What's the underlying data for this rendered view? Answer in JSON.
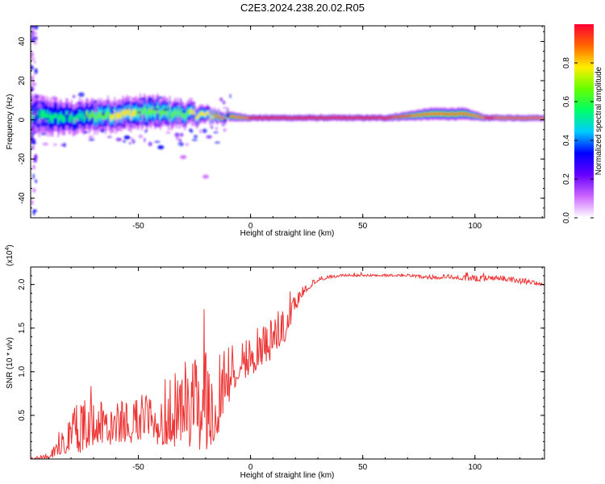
{
  "title": "C2E3.2024.238.20.02.R05",
  "chart_data": [
    {
      "type": "heatmap",
      "xlabel": "Height of straight line (km)",
      "ylabel": "Frequency (Hz)",
      "xlim": [
        -98,
        131
      ],
      "ylim": [
        -50,
        48
      ],
      "xticks": [
        -50,
        0,
        50,
        100
      ],
      "yticks": [
        -40,
        -20,
        0,
        20,
        40
      ],
      "grid": false,
      "colorbar": {
        "label": "Normalized spectral amplitude",
        "range": [
          0.0,
          1.0
        ],
        "ticks": [
          "0.0",
          "0.2",
          "0.4",
          "0.6",
          "0.8"
        ],
        "colors": [
          "#ffffff",
          "#cc66ff",
          "#6600ff",
          "#0000ff",
          "#00ccff",
          "#00ff66",
          "#66ff00",
          "#ffee00",
          "#ff6600",
          "#ff0033"
        ]
      },
      "ridge": [
        {
          "x": -95,
          "f_center": 2,
          "f_spread": 6,
          "peak": 0.6
        },
        {
          "x": -80,
          "f_center": 1,
          "f_spread": 5,
          "peak": 0.55
        },
        {
          "x": -60,
          "f_center": 3,
          "f_spread": 5,
          "peak": 0.75
        },
        {
          "x": -45,
          "f_center": 4,
          "f_spread": 5,
          "peak": 0.7
        },
        {
          "x": -30,
          "f_center": 3,
          "f_spread": 4,
          "peak": 0.7
        },
        {
          "x": -15,
          "f_center": 2,
          "f_spread": 2,
          "peak": 0.85
        },
        {
          "x": 0,
          "f_center": 1,
          "f_spread": 1,
          "peak": 0.95
        },
        {
          "x": 25,
          "f_center": 1,
          "f_spread": 1,
          "peak": 1.0
        },
        {
          "x": 60,
          "f_center": 1,
          "f_spread": 1,
          "peak": 1.0
        },
        {
          "x": 80,
          "f_center": 3,
          "f_spread": 2,
          "peak": 0.9
        },
        {
          "x": 95,
          "f_center": 3,
          "f_spread": 2,
          "peak": 0.9
        },
        {
          "x": 105,
          "f_center": 1,
          "f_spread": 1,
          "peak": 0.95
        },
        {
          "x": 131,
          "f_center": 1,
          "f_spread": 1,
          "peak": 0.9
        }
      ],
      "chirp_branch": [
        {
          "x": -55,
          "f": -9
        },
        {
          "x": -40,
          "f": -14
        },
        {
          "x": -30,
          "f": -19
        },
        {
          "x": -20,
          "f": -29
        }
      ]
    },
    {
      "type": "line",
      "xlabel": "Height of straight line (km)",
      "ylabel": "SNR (10 * v/v)",
      "y_multiplier": "(x10^4)",
      "y_multiplier_base": "(x10",
      "y_multiplier_exp": "4",
      "y_multiplier_close": ")",
      "xlim": [
        -98,
        131
      ],
      "ylim": [
        0.0,
        2.2
      ],
      "xticks": [
        -50,
        0,
        50,
        100
      ],
      "yticks": [
        "0.5",
        "1.0",
        "1.5",
        "2.0"
      ],
      "series": [
        {
          "name": "SNR",
          "color": "#ee3333",
          "envelope": {
            "x": [
              -98,
              -90,
              -85,
              -80,
              -75,
              -70,
              -60,
              -50,
              -40,
              -30,
              -25,
              -20,
              -15,
              -10,
              -5,
              0,
              5,
              10,
              15,
              20,
              25,
              30,
              40,
              50,
              60,
              70,
              80,
              90,
              100,
              110,
              120,
              131
            ],
            "base": [
              0.0,
              0.02,
              0.1,
              0.2,
              0.25,
              0.3,
              0.3,
              0.32,
              0.35,
              0.4,
              0.45,
              0.4,
              0.5,
              0.85,
              1.05,
              1.1,
              1.2,
              1.3,
              1.45,
              1.75,
              1.95,
              2.05,
              2.1,
              2.1,
              2.1,
              2.1,
              2.07,
              2.08,
              2.05,
              2.07,
              2.03,
              2.0
            ],
            "amp": [
              0.01,
              0.05,
              0.15,
              0.35,
              0.45,
              0.4,
              0.35,
              0.4,
              0.55,
              0.7,
              0.75,
              0.85,
              0.8,
              0.55,
              0.35,
              0.4,
              0.4,
              0.35,
              0.3,
              0.15,
              0.08,
              0.04,
              0.02,
              0.02,
              0.02,
              0.02,
              0.03,
              0.04,
              0.05,
              0.04,
              0.05,
              0.03
            ]
          }
        }
      ]
    }
  ]
}
